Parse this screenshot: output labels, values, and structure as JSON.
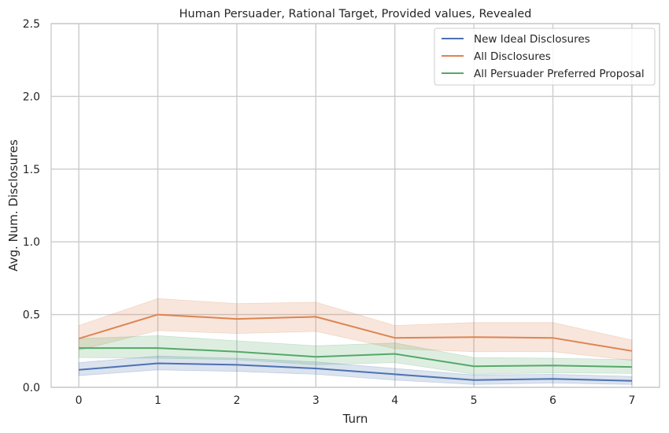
{
  "chart_data": {
    "type": "line",
    "title": "Human Persuader, Rational Target, Provided values, Revealed",
    "xlabel": "Turn",
    "ylabel": "Avg. Num. Disclosures",
    "x": [
      0,
      1,
      2,
      3,
      4,
      5,
      6,
      7
    ],
    "xlim": [
      -0.35,
      7.35
    ],
    "ylim": [
      0,
      2.5
    ],
    "xticks": [
      "0",
      "1",
      "2",
      "3",
      "4",
      "5",
      "6",
      "7"
    ],
    "yticks": [
      "0.0",
      "0.5",
      "1.0",
      "1.5",
      "2.0",
      "2.5"
    ],
    "grid": true,
    "legend_position": "top-right",
    "series": [
      {
        "name": "New Ideal Disclosures",
        "color": "#4c72b0",
        "values": [
          0.12,
          0.165,
          0.155,
          0.13,
          0.09,
          0.05,
          0.058,
          0.045
        ],
        "ci_lower": [
          0.08,
          0.12,
          0.11,
          0.09,
          0.05,
          0.02,
          0.03,
          0.02
        ],
        "ci_upper": [
          0.17,
          0.215,
          0.2,
          0.175,
          0.13,
          0.085,
          0.09,
          0.075
        ]
      },
      {
        "name": "All Disclosures",
        "color": "#dd8452",
        "values": [
          0.335,
          0.5,
          0.47,
          0.485,
          0.34,
          0.345,
          0.34,
          0.25
        ],
        "ci_lower": [
          0.255,
          0.39,
          0.37,
          0.385,
          0.265,
          0.245,
          0.245,
          0.185
        ],
        "ci_upper": [
          0.425,
          0.61,
          0.575,
          0.585,
          0.425,
          0.445,
          0.445,
          0.325
        ]
      },
      {
        "name": "All Persuader Preferred Proposal",
        "color": "#55a868",
        "values": [
          0.27,
          0.27,
          0.245,
          0.21,
          0.23,
          0.145,
          0.15,
          0.14
        ],
        "ci_lower": [
          0.205,
          0.2,
          0.19,
          0.155,
          0.17,
          0.09,
          0.1,
          0.095
        ],
        "ci_upper": [
          0.335,
          0.355,
          0.32,
          0.285,
          0.305,
          0.205,
          0.2,
          0.19
        ]
      }
    ]
  }
}
